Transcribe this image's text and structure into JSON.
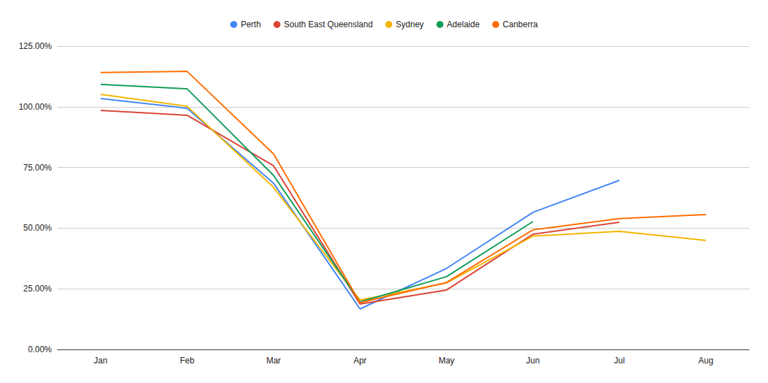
{
  "chart_data": {
    "type": "line",
    "categories": [
      "Jan",
      "Feb",
      "Mar",
      "Apr",
      "May",
      "Jun",
      "Jul",
      "Aug"
    ],
    "series": [
      {
        "name": "Perth",
        "color": "#4285f4",
        "values": [
          103.4,
          99.4,
          68.5,
          16.7,
          33.4,
          56.5,
          69.7,
          null
        ]
      },
      {
        "name": "South East Queensland",
        "color": "#db4437",
        "values": [
          98.5,
          96.5,
          75.7,
          18.7,
          24.5,
          47.5,
          52.4,
          null
        ]
      },
      {
        "name": "Sydney",
        "color": "#f4b400",
        "values": [
          105.1,
          100.2,
          66.8,
          20.4,
          27.4,
          46.7,
          48.7,
          44.9
        ]
      },
      {
        "name": "Adelaide",
        "color": "#0f9d58",
        "values": [
          109.2,
          107.4,
          71.7,
          19.6,
          30.0,
          52.7,
          null,
          null
        ]
      },
      {
        "name": "Canberra",
        "color": "#ff6d01",
        "values": [
          114.1,
          114.6,
          80.6,
          19.3,
          27.6,
          49.3,
          53.9,
          55.6
        ]
      }
    ],
    "ylim": [
      0,
      125
    ],
    "yticks": [
      {
        "value": 0,
        "label": "0.00%"
      },
      {
        "value": 25,
        "label": "25.00%"
      },
      {
        "value": 50,
        "label": "50.00%"
      },
      {
        "value": 75,
        "label": "75.00%"
      },
      {
        "value": 100,
        "label": "100.00%"
      },
      {
        "value": 125,
        "label": "125.00%"
      }
    ],
    "grid": true,
    "legend": "top"
  }
}
